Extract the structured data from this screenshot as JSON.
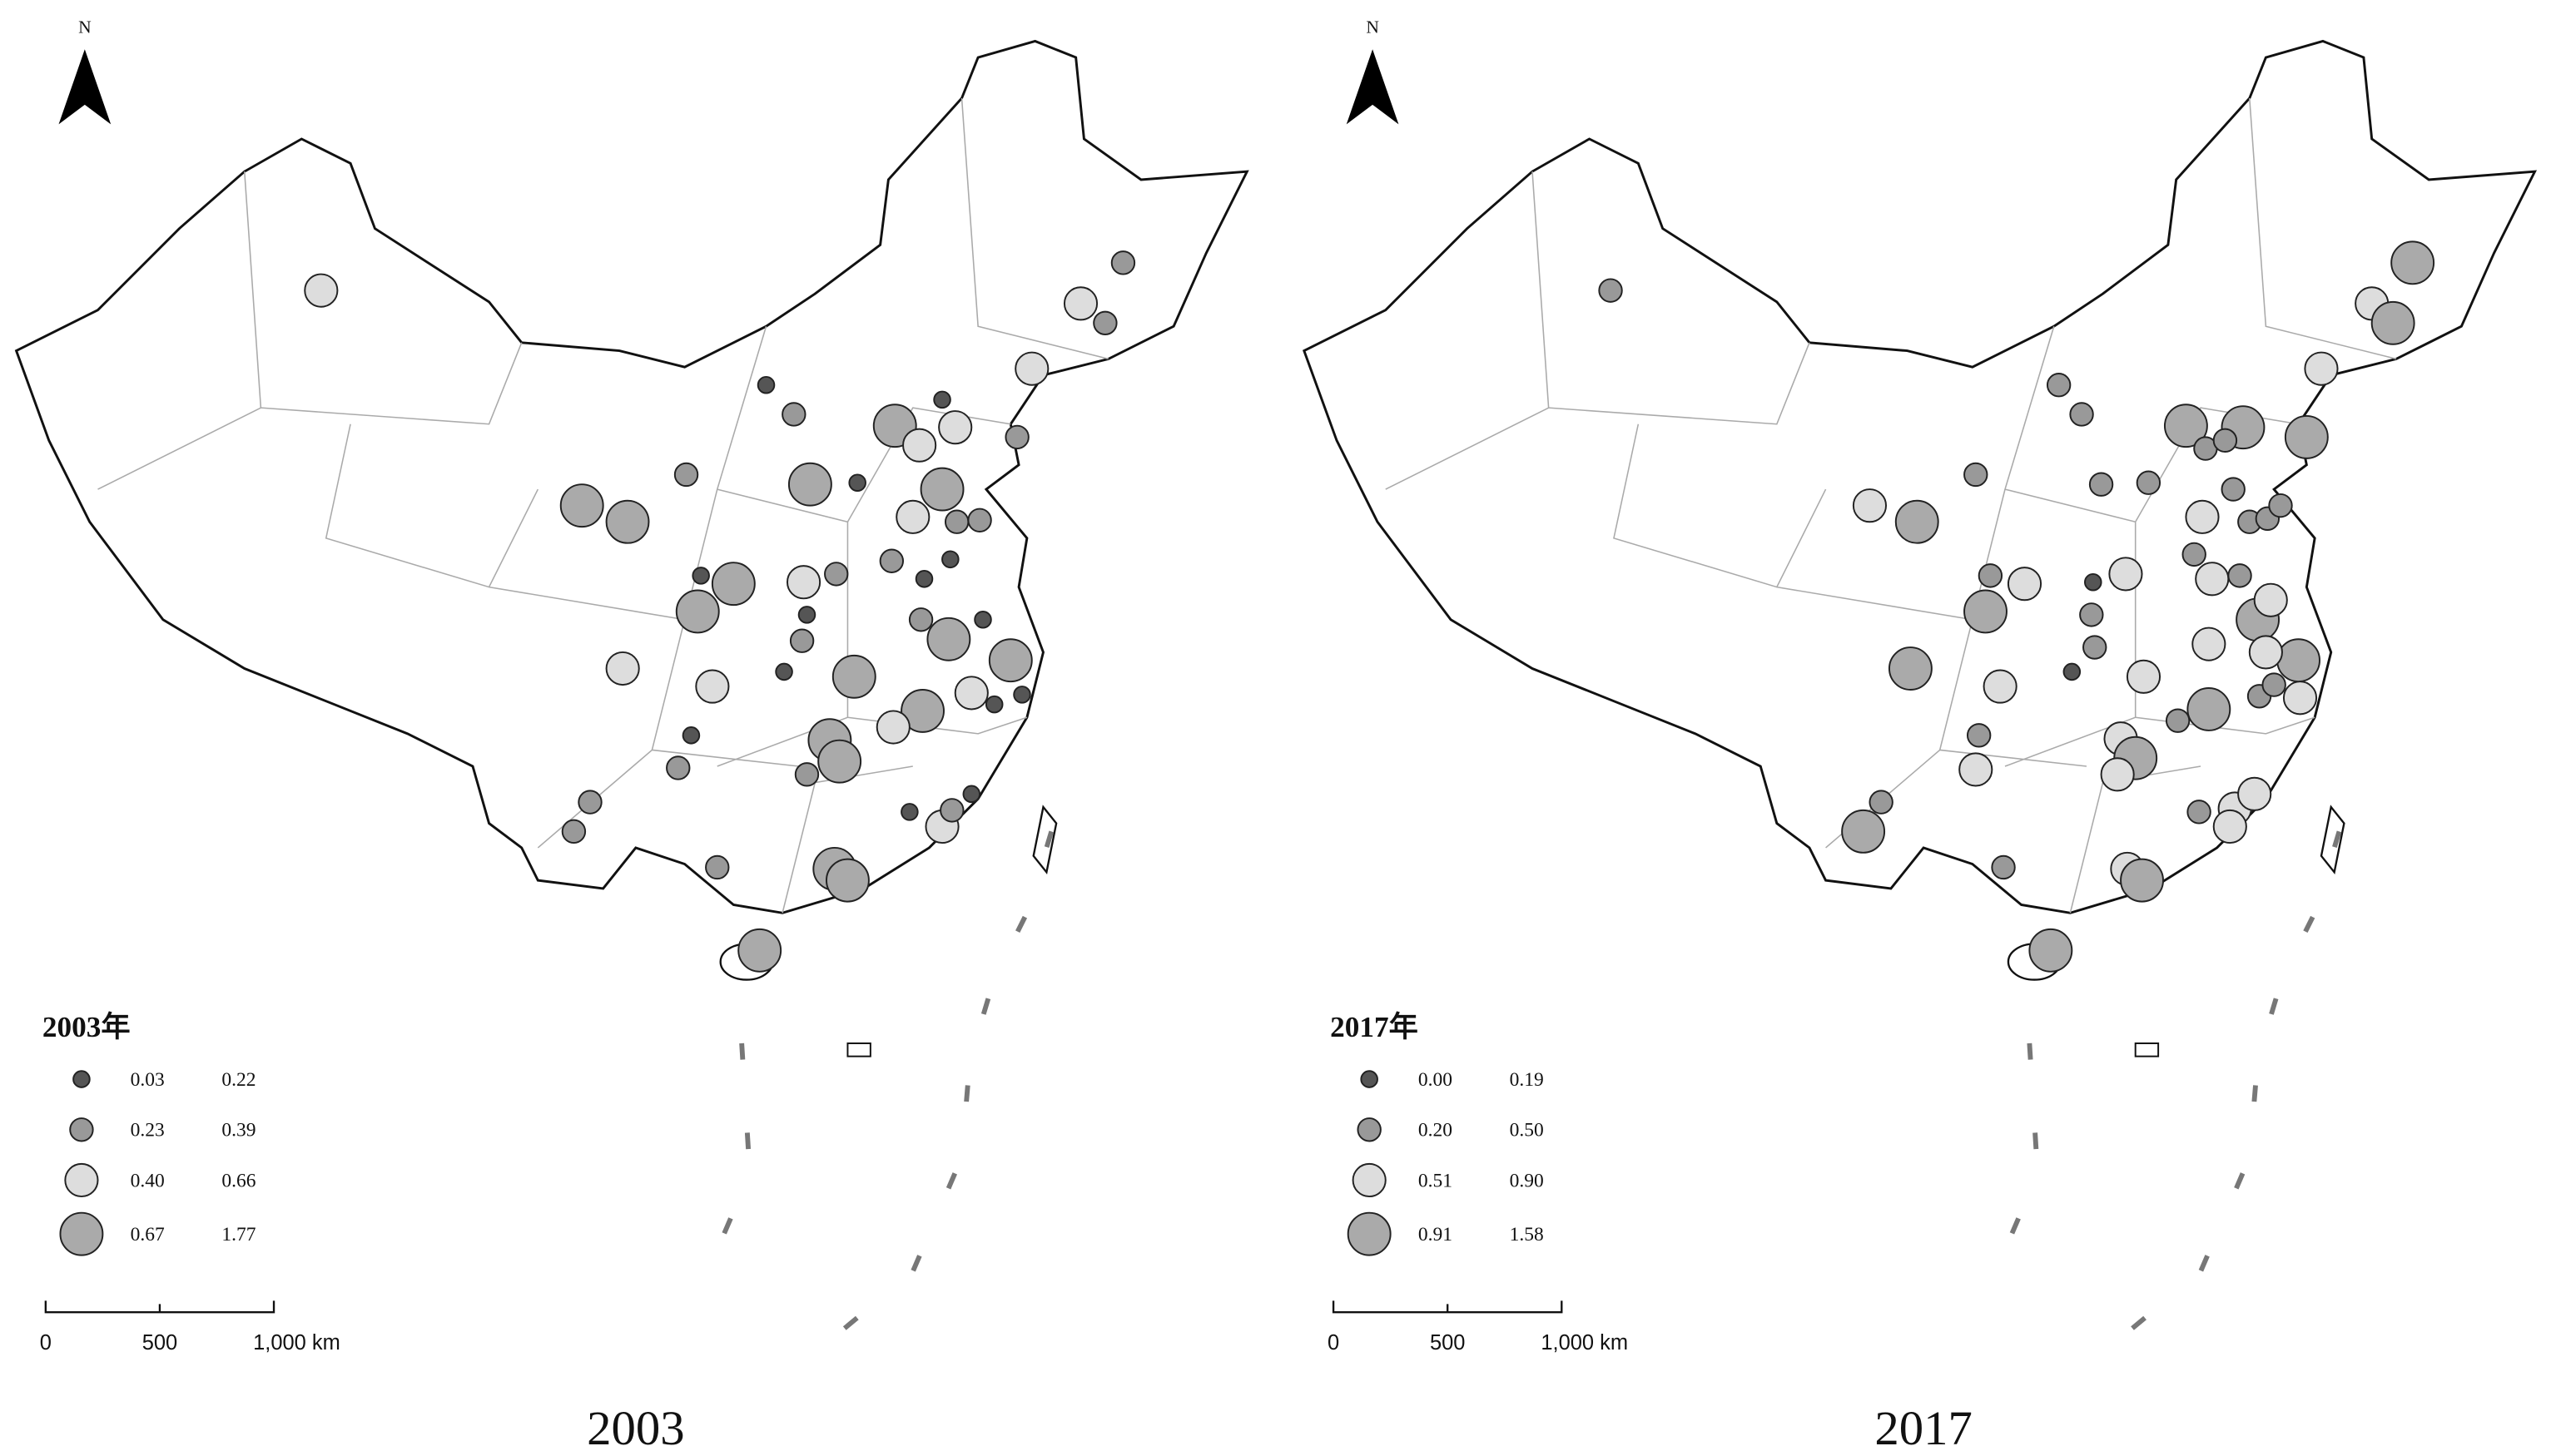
{
  "panels": [
    {
      "north": "N",
      "legend": {
        "title": "2003年",
        "items": [
          {
            "low": "0.03",
            "high": "0.22"
          },
          {
            "low": "0.23",
            "high": "0.39"
          },
          {
            "low": "0.40",
            "high": "0.66"
          },
          {
            "low": "0.67",
            "high": "1.77"
          }
        ]
      },
      "scale": {
        "labels": [
          "0",
          "500",
          "1,000 km"
        ]
      },
      "caption": "2003"
    },
    {
      "north": "N",
      "legend": {
        "title": "2017年",
        "items": [
          {
            "low": "0.00",
            "high": "0.19"
          },
          {
            "low": "0.20",
            "high": "0.50"
          },
          {
            "low": "0.51",
            "high": "0.90"
          },
          {
            "low": "0.91",
            "high": "1.58"
          }
        ]
      },
      "scale": {
        "labels": [
          "0",
          "500",
          "1,000 km"
        ]
      },
      "caption": "2017"
    }
  ]
}
